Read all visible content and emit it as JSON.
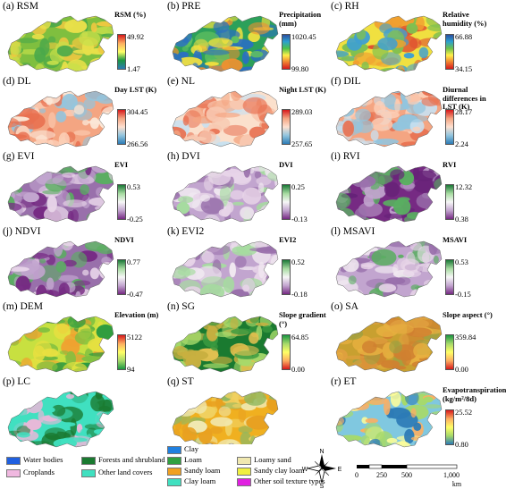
{
  "panels": [
    {
      "id": "a",
      "label": "(a) RSM",
      "title": "RSM (%)",
      "max": "49.92",
      "min": "1.47",
      "grad": [
        "#d7191c",
        "#fdae61",
        "#ffff66",
        "#1a9641",
        "#2c7bb6"
      ],
      "map": [
        "#7fbf3f",
        "#c8e04a",
        "#e8e04a",
        "#4aa84a",
        "#f0c840"
      ]
    },
    {
      "id": "b",
      "label": "(b) PRE",
      "title": "Precipitation (mm)",
      "max": "1020.45",
      "min": "99.80",
      "grad": [
        "#2c4fa0",
        "#2ca0d0",
        "#4ac04a",
        "#fff04a",
        "#f08030",
        "#d7191c"
      ],
      "map": [
        "#2ca05a",
        "#60c060",
        "#f0e040",
        "#f09030",
        "#2a70c0"
      ]
    },
    {
      "id": "c",
      "label": "(c) RH",
      "title": "Relative humidity (%)",
      "max": "66.88",
      "min": "34.15",
      "grad": [
        "#2c4fa0",
        "#2ca0d0",
        "#6cc04a",
        "#fff04a",
        "#f08030",
        "#d7191c"
      ],
      "map": [
        "#f0e040",
        "#80c050",
        "#f0a030",
        "#40a0d0",
        "#e05030"
      ]
    },
    {
      "id": "d",
      "label": "(d) DL",
      "title": "Day LST (K)",
      "max": "304.45",
      "min": "266.56",
      "grad": [
        "#d7191c",
        "#f4a582",
        "#fde0d0",
        "#92c5de",
        "#2c7bb6"
      ],
      "map": [
        "#f4a582",
        "#fcd0b8",
        "#e87050",
        "#92c5de",
        "#fbe8d8"
      ]
    },
    {
      "id": "e",
      "label": "(e) NL",
      "title": "Night LST (K)",
      "max": "289.03",
      "min": "257.65",
      "grad": [
        "#d7191c",
        "#f4a582",
        "#fde0d0",
        "#92c5de",
        "#2c7bb6"
      ],
      "map": [
        "#fbe0cc",
        "#f8c8b0",
        "#f4a582",
        "#c8e0f0",
        "#e87050"
      ]
    },
    {
      "id": "f",
      "label": "(f) DIL",
      "title": "Diurnal differences in LST (K)",
      "max": "28.17",
      "min": "2.24",
      "grad": [
        "#d7191c",
        "#f4a582",
        "#fde0d0",
        "#92c5de",
        "#2c7bb6"
      ],
      "map": [
        "#f4a582",
        "#fcd0b8",
        "#92c5de",
        "#e87050",
        "#c8e0f0"
      ]
    },
    {
      "id": "g",
      "label": "(g) EVI",
      "title": "EVI",
      "max": "0.53",
      "min": "-0.25",
      "grad": [
        "#1b7837",
        "#a6dba0",
        "#f7f7f7",
        "#c2a5cf",
        "#762a83"
      ],
      "map": [
        "#9970ab",
        "#c2a5cf",
        "#e7d4e8",
        "#5aae61",
        "#762a83"
      ]
    },
    {
      "id": "h",
      "label": "(h) DVI",
      "title": "DVI",
      "max": "0.25",
      "min": "-0.13",
      "grad": [
        "#1b7837",
        "#a6dba0",
        "#f7f7f7",
        "#c2a5cf",
        "#762a83"
      ],
      "map": [
        "#c2a5cf",
        "#e7d4e8",
        "#9970ab",
        "#a6dba0",
        "#f0e8f0"
      ]
    },
    {
      "id": "i",
      "label": "(i) RVI",
      "title": "RVI",
      "max": "12.32",
      "min": "0.38",
      "grad": [
        "#1b7837",
        "#a6dba0",
        "#f7f7f7",
        "#c2a5cf",
        "#762a83"
      ],
      "map": [
        "#762a83",
        "#9970ab",
        "#5aae61",
        "#c2a5cf",
        "#662278"
      ]
    },
    {
      "id": "j",
      "label": "(j) NDVI",
      "title": "NDVI",
      "max": "0.77",
      "min": "-0.47",
      "grad": [
        "#1b7837",
        "#a6dba0",
        "#f7f7f7",
        "#c2a5cf",
        "#762a83"
      ],
      "map": [
        "#9970ab",
        "#762a83",
        "#c2a5cf",
        "#5aae61",
        "#e7d4e8"
      ]
    },
    {
      "id": "k",
      "label": "(k) EVI2",
      "title": "EVI2",
      "max": "0.52",
      "min": "-0.18",
      "grad": [
        "#1b7837",
        "#a6dba0",
        "#f7f7f7",
        "#c2a5cf",
        "#762a83"
      ],
      "map": [
        "#c2a5cf",
        "#9970ab",
        "#e7d4e8",
        "#a6dba0",
        "#f0e8f0"
      ]
    },
    {
      "id": "l",
      "label": "(l) MSAVI",
      "title": "MSAVI",
      "max": "0.53",
      "min": "-0.15",
      "grad": [
        "#1b7837",
        "#a6dba0",
        "#f7f7f7",
        "#c2a5cf",
        "#762a83"
      ],
      "map": [
        "#c2a5cf",
        "#9970ab",
        "#e7d4e8",
        "#5aae61",
        "#f0e8f0"
      ]
    },
    {
      "id": "m",
      "label": "(m) DEM",
      "title": "Elevation (m)",
      "max": "5122",
      "min": "94",
      "grad": [
        "#d7191c",
        "#fdae61",
        "#ffff66",
        "#a6d96a",
        "#1a9641"
      ],
      "map": [
        "#c8e040",
        "#e8e040",
        "#80c040",
        "#f0a030",
        "#2a9a40"
      ]
    },
    {
      "id": "n",
      "label": "(n) SG",
      "title": "Slope gradient (°)",
      "max": "64.85",
      "min": "0.00",
      "grad": [
        "#1a9641",
        "#a6d96a",
        "#ffff66",
        "#fdae61",
        "#d7191c"
      ],
      "map": [
        "#1a7a30",
        "#3a9a40",
        "#c8b040",
        "#a6d96a",
        "#e0c050"
      ]
    },
    {
      "id": "o",
      "label": "(o) SA",
      "title": "Slope aspect (°)",
      "max": "359.84",
      "min": "0.00",
      "grad": [
        "#1a9641",
        "#a6d96a",
        "#ffff66",
        "#fdae61",
        "#d7191c"
      ],
      "map": [
        "#c8a030",
        "#e0a040",
        "#d08030",
        "#a0a040",
        "#e8b040"
      ]
    },
    {
      "id": "p",
      "label": "(p) LC",
      "title": "",
      "max": "",
      "min": "",
      "grad": [],
      "map": [
        "#40e0c0",
        "#40e0c0",
        "#e8b8d8",
        "#40e0c0",
        "#1a7a30"
      ]
    },
    {
      "id": "q",
      "label": "(q) ST",
      "title": "",
      "max": "",
      "min": "",
      "grad": [],
      "map": [
        "#f0b020",
        "#e8a020",
        "#f0e8b0",
        "#90b860",
        "#f0d060"
      ]
    },
    {
      "id": "r",
      "label": "(r) ET",
      "title": "Evapotranspiration (kg/m²/8d)",
      "max": "25.52",
      "min": "0.80",
      "grad": [
        "#d7191c",
        "#fdae61",
        "#ffff66",
        "#a6d96a",
        "#2c7bb6"
      ],
      "map": [
        "#80c8e0",
        "#2c7bb6",
        "#a6d96a",
        "#fdae61",
        "#fefe9a"
      ]
    }
  ],
  "lc_legend": [
    {
      "label": "Water bodies",
      "color": "#2060e0"
    },
    {
      "label": "Forests and shrublands",
      "color": "#1a7a30"
    },
    {
      "label": "Croplands",
      "color": "#f0b8e0"
    },
    {
      "label": "Other land covers",
      "color": "#40e0c0"
    }
  ],
  "st_legend": [
    {
      "label": "Clay",
      "color": "#2080e0"
    },
    {
      "label": "Loam",
      "color": "#30a040"
    },
    {
      "label": "Loamy sand",
      "color": "#f0e8b0"
    },
    {
      "label": "Sandy loam",
      "color": "#f0a020"
    },
    {
      "label": "Sandy clay loam",
      "color": "#f0f040"
    },
    {
      "label": "Clay loam",
      "color": "#40e0c0"
    },
    {
      "label": "Other soil texture types",
      "color": "#e020e0"
    }
  ],
  "north": {
    "n": "N",
    "s": "S",
    "e": "E",
    "w": "W"
  },
  "scale": {
    "ticks": [
      "0",
      "250",
      "500",
      "1,000"
    ],
    "unit": "km"
  }
}
